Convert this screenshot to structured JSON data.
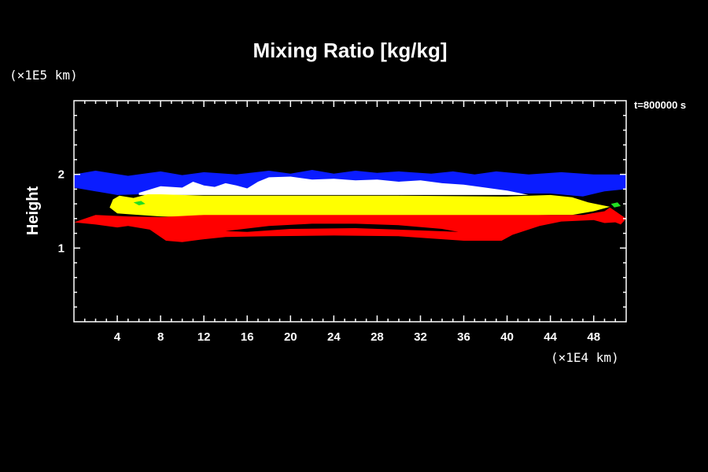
{
  "chart_data": {
    "type": "heatmap",
    "title": "Mixing Ratio [kg/kg]",
    "ylabel": "Height",
    "x_unit_label": "(×1E4 km)",
    "y_unit_label": "(×1E5 km)",
    "time_label": "t=800000 s",
    "xlim": [
      0,
      51
    ],
    "ylim": [
      0,
      3
    ],
    "x_ticks": [
      "4",
      "8",
      "12",
      "16",
      "20",
      "24",
      "28",
      "32",
      "36",
      "40",
      "44",
      "48"
    ],
    "y_ticks": [
      "1",
      "2"
    ],
    "colors": {
      "background": "#000000",
      "blue": "#0a1cff",
      "white": "#ffffff",
      "yellow": "#ffff00",
      "red": "#ff0000",
      "green": "#22dd22",
      "magenta": "#ff40ff"
    },
    "layers": [
      {
        "name": "blue",
        "color": "#0a1cff",
        "outline": [
          [
            0,
            2.0
          ],
          [
            2,
            2.05
          ],
          [
            5,
            1.98
          ],
          [
            8,
            2.04
          ],
          [
            10,
            1.99
          ],
          [
            12,
            2.03
          ],
          [
            15,
            2.0
          ],
          [
            18,
            2.05
          ],
          [
            20,
            2.01
          ],
          [
            22,
            2.06
          ],
          [
            24,
            2.01
          ],
          [
            26,
            2.05
          ],
          [
            28,
            2.02
          ],
          [
            30,
            2.04
          ],
          [
            33,
            2.01
          ],
          [
            35,
            2.04
          ],
          [
            37,
            2.0
          ],
          [
            39,
            2.04
          ],
          [
            42,
            2.0
          ],
          [
            45,
            2.03
          ],
          [
            48,
            2.0
          ],
          [
            51,
            2.0
          ],
          [
            51,
            1.8
          ],
          [
            49,
            1.77
          ],
          [
            47,
            1.7
          ],
          [
            44,
            1.74
          ],
          [
            41,
            1.74
          ],
          [
            38,
            1.77
          ],
          [
            30,
            1.78
          ],
          [
            22,
            1.78
          ],
          [
            14,
            1.76
          ],
          [
            9,
            1.75
          ],
          [
            6,
            1.73
          ],
          [
            4,
            1.72
          ],
          [
            2,
            1.77
          ],
          [
            0,
            1.82
          ]
        ]
      },
      {
        "name": "white",
        "color": "#ffffff",
        "outline": [
          [
            6,
            1.75
          ],
          [
            8,
            1.84
          ],
          [
            10,
            1.82
          ],
          [
            11,
            1.9
          ],
          [
            12,
            1.85
          ],
          [
            13,
            1.83
          ],
          [
            14,
            1.88
          ],
          [
            15,
            1.85
          ],
          [
            16,
            1.81
          ],
          [
            17,
            1.9
          ],
          [
            18,
            1.96
          ],
          [
            20,
            1.97
          ],
          [
            22,
            1.93
          ],
          [
            24,
            1.94
          ],
          [
            26,
            1.92
          ],
          [
            28,
            1.93
          ],
          [
            30,
            1.9
          ],
          [
            32,
            1.92
          ],
          [
            34,
            1.88
          ],
          [
            36,
            1.86
          ],
          [
            38,
            1.82
          ],
          [
            40,
            1.78
          ],
          [
            42,
            1.72
          ],
          [
            6,
            1.72
          ]
        ]
      },
      {
        "name": "yellow",
        "color": "#ffff00",
        "outline": [
          [
            3.3,
            1.55
          ],
          [
            3.6,
            1.66
          ],
          [
            4.2,
            1.71
          ],
          [
            5.5,
            1.68
          ],
          [
            6.8,
            1.73
          ],
          [
            8,
            1.73
          ],
          [
            12,
            1.71
          ],
          [
            20,
            1.71
          ],
          [
            30,
            1.71
          ],
          [
            40,
            1.7
          ],
          [
            44,
            1.72
          ],
          [
            46,
            1.69
          ],
          [
            47.5,
            1.62
          ],
          [
            49.5,
            1.56
          ],
          [
            48,
            1.5
          ],
          [
            46,
            1.45
          ],
          [
            44,
            1.45
          ],
          [
            40,
            1.44
          ],
          [
            36,
            1.43
          ],
          [
            28,
            1.43
          ],
          [
            20,
            1.43
          ],
          [
            12,
            1.42
          ],
          [
            8,
            1.43
          ],
          [
            6,
            1.45
          ],
          [
            4,
            1.47
          ]
        ]
      },
      {
        "name": "red",
        "color": "#ff0000",
        "outline": [
          [
            0,
            1.35
          ],
          [
            2,
            1.45
          ],
          [
            5,
            1.43
          ],
          [
            8,
            1.42
          ],
          [
            12,
            1.45
          ],
          [
            16,
            1.45
          ],
          [
            20,
            1.45
          ],
          [
            24,
            1.45
          ],
          [
            28,
            1.45
          ],
          [
            32,
            1.45
          ],
          [
            36,
            1.45
          ],
          [
            40,
            1.45
          ],
          [
            44,
            1.45
          ],
          [
            47,
            1.45
          ],
          [
            49,
            1.5
          ],
          [
            49.5,
            1.55
          ],
          [
            51,
            1.4
          ],
          [
            50.5,
            1.32
          ],
          [
            50,
            1.35
          ],
          [
            49,
            1.34
          ],
          [
            48,
            1.38
          ],
          [
            45,
            1.36
          ],
          [
            43,
            1.3
          ],
          [
            40.5,
            1.18
          ],
          [
            39.5,
            1.1
          ],
          [
            36,
            1.1
          ],
          [
            30,
            1.16
          ],
          [
            24,
            1.17
          ],
          [
            18,
            1.16
          ],
          [
            14,
            1.15
          ],
          [
            12,
            1.12
          ],
          [
            10,
            1.08
          ],
          [
            8.5,
            1.1
          ],
          [
            7,
            1.25
          ],
          [
            5,
            1.3
          ],
          [
            4,
            1.28
          ],
          [
            2,
            1.32
          ]
        ]
      },
      {
        "name": "black-streak",
        "color": "#000000",
        "outline": [
          [
            14,
            1.23
          ],
          [
            18,
            1.3
          ],
          [
            22,
            1.33
          ],
          [
            26,
            1.33
          ],
          [
            30,
            1.31
          ],
          [
            34,
            1.26
          ],
          [
            35.5,
            1.22
          ],
          [
            32,
            1.24
          ],
          [
            26,
            1.27
          ],
          [
            20,
            1.26
          ],
          [
            16,
            1.22
          ]
        ]
      },
      {
        "name": "green-left",
        "color": "#22dd22",
        "outline": [
          [
            5.5,
            1.62
          ],
          [
            6.2,
            1.64
          ],
          [
            6.6,
            1.6
          ],
          [
            6.0,
            1.58
          ]
        ]
      },
      {
        "name": "green-right",
        "color": "#22dd22",
        "outline": [
          [
            49.6,
            1.6
          ],
          [
            50.2,
            1.62
          ],
          [
            50.5,
            1.57
          ],
          [
            49.9,
            1.55
          ]
        ]
      }
    ]
  }
}
